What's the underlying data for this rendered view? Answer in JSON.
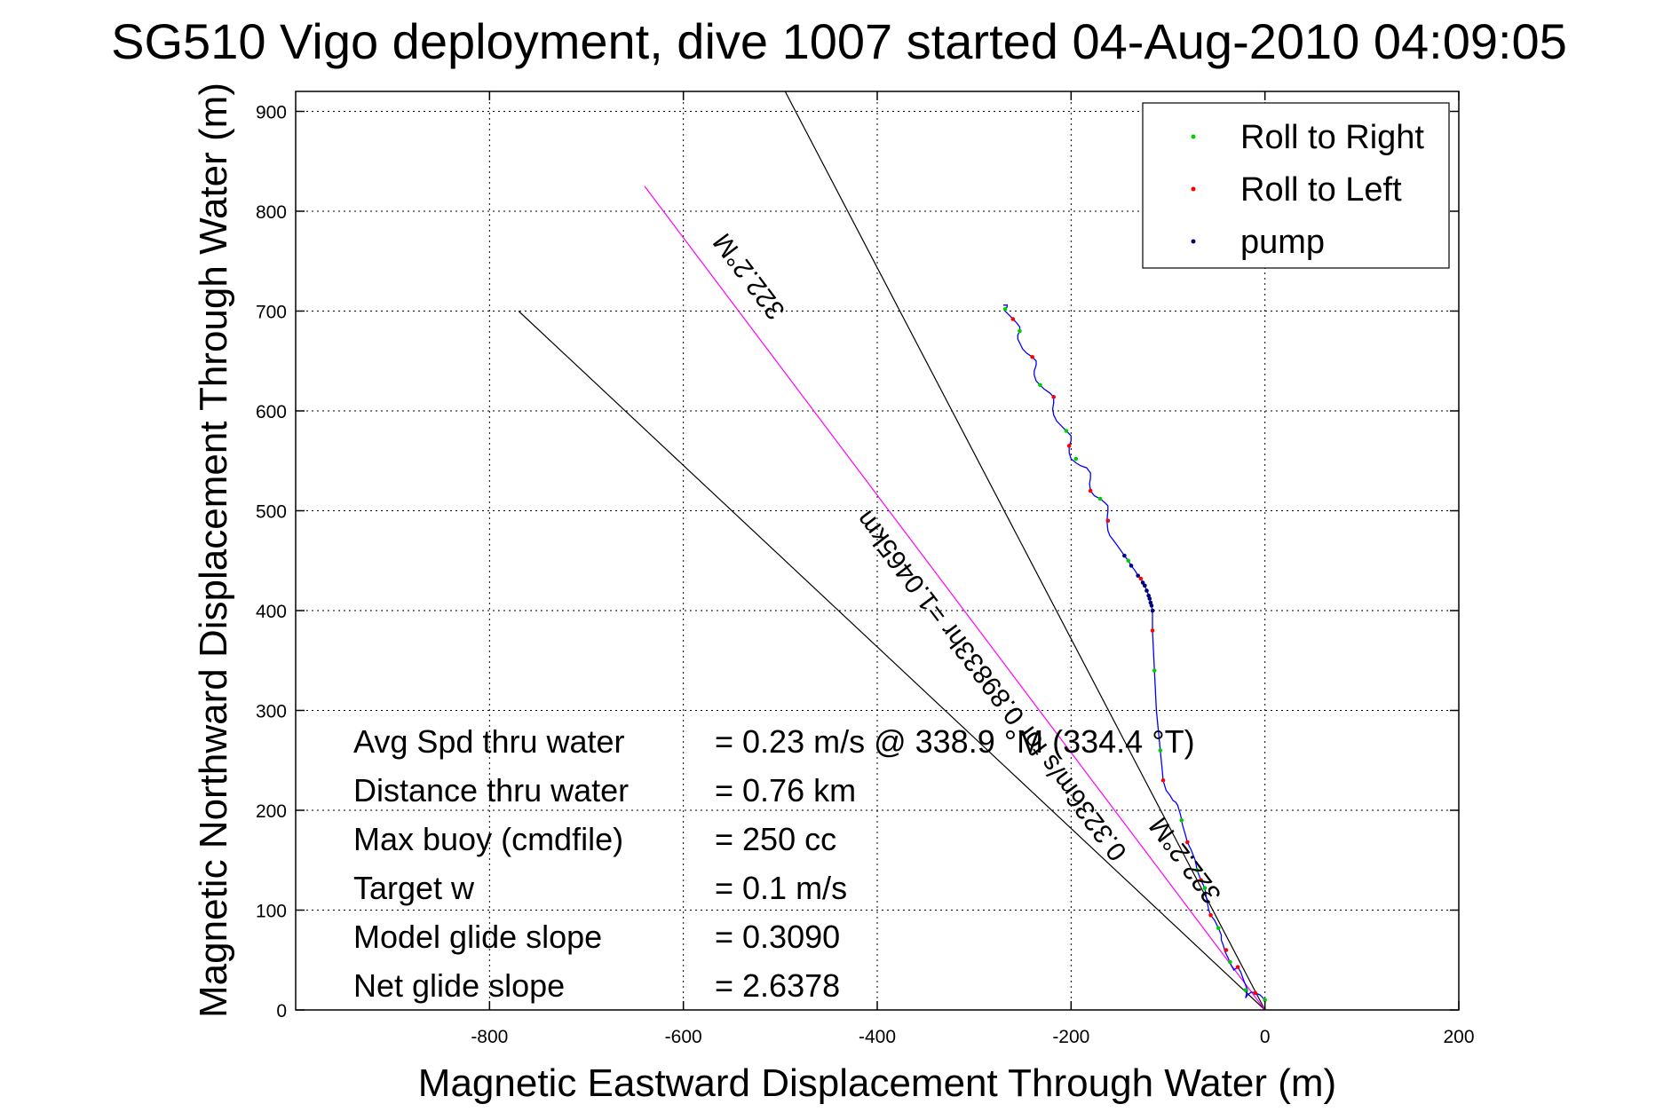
{
  "chart_data": {
    "type": "line",
    "title": "SG510 Vigo deployment, dive 1007 started 04-Aug-2010 04:09:05",
    "xlabel": "Magnetic Eastward Displacement Through Water (m)",
    "ylabel": "Magnetic Northward Displacement Through Water (m)",
    "xlim": [
      -1000,
      200
    ],
    "ylim": [
      0,
      920
    ],
    "xticks": [
      -800,
      -600,
      -400,
      -200,
      0,
      200
    ],
    "xtick_labels": [
      "-800",
      "-600",
      "-400",
      "-200",
      "0",
      "200"
    ],
    "yticks": [
      0,
      100,
      200,
      300,
      400,
      500,
      600,
      700,
      800,
      900
    ],
    "ytick_labels": [
      "0",
      "100",
      "200",
      "300",
      "400",
      "500",
      "600",
      "700",
      "800",
      "900"
    ],
    "grid": true,
    "legend_position": "top-right",
    "legend": [
      {
        "label": "Roll to Right",
        "color": "#00cc00"
      },
      {
        "label": "Roll to Left",
        "color": "#ff0000"
      },
      {
        "label": "pump",
        "color": "#000080"
      }
    ],
    "track": {
      "name": "glider track",
      "color": "#0000ff",
      "x": [
        0,
        -5,
        -10,
        -14,
        -18,
        -20,
        -18,
        -20,
        -22,
        -25,
        -28,
        -32,
        -35,
        -38,
        -41,
        -43,
        -45,
        -45,
        -48,
        -52,
        -56,
        -58,
        -60,
        -62,
        -66,
        -68,
        -70,
        -72,
        -76,
        -80,
        -82,
        -85,
        -86,
        -87,
        -90,
        -92,
        -95,
        -98,
        -102,
        -105,
        -106,
        -108,
        -110,
        -112,
        -113,
        -114,
        -115,
        -116,
        -116,
        -117,
        -118,
        -119,
        -120,
        -121,
        -122,
        -124,
        -126,
        -128,
        -131,
        -134,
        -138,
        -141,
        -145,
        -150,
        -156,
        -160,
        -162,
        -163,
        -162,
        -162,
        -165,
        -170,
        -176,
        -180,
        -181,
        -180,
        -180,
        -184,
        -190,
        -195,
        -200,
        -202,
        -202,
        -200,
        -200,
        -205,
        -210,
        -215,
        -218,
        -219,
        -218,
        -218,
        -222,
        -228,
        -232,
        -236,
        -238,
        -238,
        -236,
        -236,
        -240,
        -246,
        -250,
        -253,
        -255,
        -255,
        -253,
        -253,
        -256,
        -260,
        -263,
        -266,
        -268,
        -268,
        -266,
        -266,
        -268,
        -270
      ],
      "y": [
        10,
        15,
        17,
        18,
        15,
        12,
        20,
        25,
        30,
        38,
        43,
        40,
        45,
        52,
        58,
        65,
        70,
        75,
        82,
        90,
        95,
        100,
        110,
        122,
        130,
        135,
        140,
        150,
        160,
        168,
        175,
        185,
        190,
        195,
        205,
        208,
        210,
        215,
        220,
        230,
        240,
        260,
        280,
        300,
        320,
        340,
        360,
        380,
        400,
        405,
        408,
        412,
        415,
        418,
        420,
        425,
        428,
        432,
        435,
        440,
        445,
        450,
        455,
        462,
        470,
        475,
        480,
        490,
        500,
        505,
        508,
        512,
        515,
        520,
        527,
        533,
        538,
        543,
        545,
        548,
        552,
        558,
        565,
        570,
        575,
        580,
        585,
        590,
        596,
        602,
        608,
        614,
        618,
        622,
        626,
        630,
        636,
        640,
        646,
        650,
        654,
        658,
        662,
        668,
        672,
        676,
        680,
        684,
        688,
        692,
        695,
        698,
        700,
        702,
        704,
        706,
        706,
        706
      ]
    },
    "track_points": {
      "right": {
        "x": [
          0,
          -20,
          -36,
          -48,
          -62,
          -70,
          -86,
          -108,
          -114,
          -124,
          -141,
          -170,
          -195,
          -205,
          -232,
          -253,
          -268
        ],
        "y": [
          10,
          20,
          48,
          82,
          122,
          140,
          190,
          260,
          340,
          425,
          450,
          512,
          552,
          580,
          626,
          680,
          702
        ]
      },
      "left": {
        "x": [
          -10,
          -28,
          -40,
          -56,
          -66,
          -80,
          -105,
          -116,
          -128,
          -162,
          -180,
          -202,
          -218,
          -240,
          -260
        ],
        "y": [
          17,
          43,
          60,
          95,
          130,
          168,
          230,
          380,
          432,
          490,
          520,
          565,
          614,
          654,
          692
        ]
      },
      "pump": {
        "x": [
          -116,
          -117,
          -118,
          -119,
          -120,
          -122,
          -124,
          -126,
          -131,
          -138,
          -145
        ],
        "y": [
          400,
          405,
          408,
          412,
          415,
          420,
          425,
          428,
          435,
          445,
          455
        ]
      }
    },
    "reference_lines": [
      {
        "name": "course line",
        "color": "#000000",
        "x": [
          0,
          -495
        ],
        "y": [
          0,
          920
        ]
      },
      {
        "name": "depth-average current line",
        "color": "#000000",
        "x": [
          0,
          -770
        ],
        "y": [
          0,
          700
        ]
      },
      {
        "name": "net displacement line",
        "color": "#ff00ff",
        "x": [
          0,
          -640
        ],
        "y": [
          0,
          825
        ]
      }
    ],
    "line_labels": [
      {
        "text": "322.2°M",
        "x": -525,
        "y": 740,
        "rotation": -127.0
      },
      {
        "text": "0.3236m/s for 0.89833hr =1.0465km",
        "x": -275,
        "y": 330,
        "rotation": -127.0
      },
      {
        "text": "322.2°M",
        "x": -75,
        "y": 155,
        "rotation": -127.0
      }
    ],
    "annotations": [
      {
        "label": "Avg Spd thru water",
        "value": "=  0.23 m/s @ 338.9 °M (334.4 °T)"
      },
      {
        "label": "Distance thru water",
        "value": "=  0.76 km"
      },
      {
        "label": "Max buoy (cmdfile)",
        "value": "= 250 cc"
      },
      {
        "label": "Target w",
        "value": "= 0.1 m/s"
      },
      {
        "label": "Model glide slope",
        "value": "= 0.3090"
      },
      {
        "label": "Net glide slope",
        "value": "= 2.6378"
      }
    ]
  }
}
